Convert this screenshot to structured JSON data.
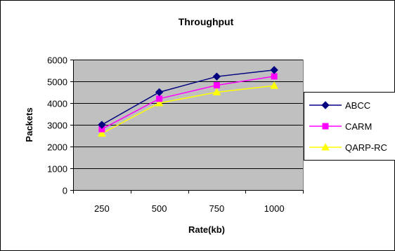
{
  "chart_data": {
    "type": "line",
    "title": "Throughput",
    "xlabel": "Rate(kb)",
    "ylabel": "Packets",
    "categories": [
      "250",
      "500",
      "750",
      "1000"
    ],
    "ylim": [
      0,
      6000
    ],
    "yticks": [
      0,
      1000,
      2000,
      3000,
      4000,
      5000,
      6000
    ],
    "grid": true,
    "legend_position": "right",
    "series": [
      {
        "name": "ABCC",
        "values": [
          3000,
          4500,
          5220,
          5520
        ],
        "color": "#000080",
        "marker": "diamond"
      },
      {
        "name": "CARM",
        "values": [
          2800,
          4200,
          4820,
          5230
        ],
        "color": "#ff00ff",
        "marker": "square"
      },
      {
        "name": "QARP-RC",
        "values": [
          2600,
          4000,
          4500,
          4800
        ],
        "color": "#ffff00",
        "marker": "triangle"
      }
    ]
  }
}
